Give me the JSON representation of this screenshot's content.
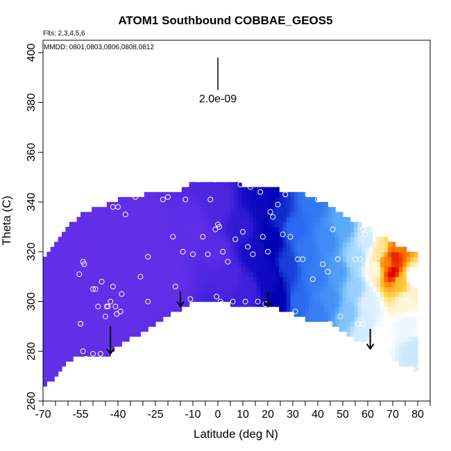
{
  "chart_data": {
    "type": "heatmap",
    "title": "ATOM1 Southbound COBBAE_GEOS5",
    "subtitle_flights": "Flts: 2,3,4,5,6",
    "subtitle_dates": "MMDD: 0801,0803,0806,0808,0812",
    "xlabel": "Latitude (deg N)",
    "ylabel": "Theta (C)",
    "xlim": [
      -70,
      85
    ],
    "ylim": [
      260,
      405
    ],
    "x_ticks": [
      -70,
      -55,
      -40,
      -25,
      -10,
      0,
      10,
      20,
      30,
      40,
      50,
      60,
      70,
      80
    ],
    "x_minor_ticks": [
      -65,
      -60,
      -50,
      -45,
      -35,
      -30,
      -20,
      -15,
      -5,
      5,
      15,
      25,
      35,
      45,
      55,
      65,
      75,
      85
    ],
    "y_ticks": [
      260,
      280,
      300,
      320,
      340,
      360,
      380,
      400
    ],
    "scale_bar_label": "2.0e-09",
    "scale_bar": {
      "lat": 0,
      "theta_top": 398,
      "theta_bottom": 385
    },
    "colormap": [
      "#8A3CF0",
      "#5A2CE6",
      "#1A0FC8",
      "#0000B4",
      "#2A6AF0",
      "#5AAAF8",
      "#A8D8FF",
      "#FFFFFF",
      "#FFD040",
      "#FF8000",
      "#E00000"
    ],
    "boundary_top": [
      [
        -70,
        317
      ],
      [
        -65,
        323
      ],
      [
        -60,
        330
      ],
      [
        -55,
        335
      ],
      [
        -50,
        337
      ],
      [
        -45,
        339
      ],
      [
        -40,
        341
      ],
      [
        -35,
        342
      ],
      [
        -30,
        343
      ],
      [
        -25,
        344
      ],
      [
        -20,
        344
      ],
      [
        -15,
        345
      ],
      [
        -10,
        348
      ],
      [
        -5,
        348
      ],
      [
        0,
        349
      ],
      [
        5,
        348
      ],
      [
        10,
        347
      ],
      [
        15,
        346
      ],
      [
        20,
        345
      ],
      [
        25,
        345
      ],
      [
        30,
        344
      ],
      [
        35,
        343
      ],
      [
        40,
        341
      ],
      [
        45,
        338
      ],
      [
        50,
        335
      ],
      [
        55,
        332
      ],
      [
        60,
        330
      ],
      [
        65,
        326
      ],
      [
        70,
        324
      ],
      [
        75,
        321
      ],
      [
        79,
        320
      ]
    ],
    "boundary_bottom": [
      [
        79,
        273
      ],
      [
        74,
        274
      ],
      [
        70,
        277
      ],
      [
        65,
        281
      ],
      [
        60,
        283
      ],
      [
        55,
        285
      ],
      [
        50,
        288
      ],
      [
        45,
        291
      ],
      [
        40,
        292
      ],
      [
        35,
        293
      ],
      [
        30,
        295
      ],
      [
        25,
        297
      ],
      [
        20,
        298
      ],
      [
        15,
        299
      ],
      [
        10,
        299
      ],
      [
        5,
        299
      ],
      [
        0,
        300
      ],
      [
        -5,
        301
      ],
      [
        -10,
        300
      ],
      [
        -13,
        298
      ],
      [
        -15,
        297
      ],
      [
        -20,
        294
      ],
      [
        -25,
        291
      ],
      [
        -30,
        288
      ],
      [
        -35,
        285
      ],
      [
        -40,
        282
      ],
      [
        -43,
        279
      ],
      [
        -45,
        278
      ],
      [
        -50,
        279
      ],
      [
        -55,
        278
      ],
      [
        -60,
        276
      ],
      [
        -63,
        273
      ],
      [
        -65,
        269
      ],
      [
        -68,
        267
      ],
      [
        -70,
        267
      ]
    ],
    "field_points": [
      [
        -65,
        290,
        0.08
      ],
      [
        -60,
        300,
        0.08
      ],
      [
        -50,
        320,
        0.08
      ],
      [
        -40,
        295,
        0.08
      ],
      [
        -30,
        330,
        0.08
      ],
      [
        -20,
        310,
        0.08
      ],
      [
        -10,
        330,
        0.09
      ],
      [
        0,
        320,
        0.1
      ],
      [
        0,
        340,
        0.12
      ],
      [
        5,
        310,
        0.12
      ],
      [
        10,
        330,
        0.16
      ],
      [
        12,
        305,
        0.14
      ],
      [
        15,
        320,
        0.22
      ],
      [
        18,
        340,
        0.25
      ],
      [
        20,
        310,
        0.24
      ],
      [
        22,
        325,
        0.3
      ],
      [
        25,
        335,
        0.34
      ],
      [
        25,
        300,
        0.3
      ],
      [
        28,
        315,
        0.36
      ],
      [
        30,
        330,
        0.4
      ],
      [
        32,
        300,
        0.4
      ],
      [
        35,
        320,
        0.42
      ],
      [
        38,
        340,
        0.42
      ],
      [
        40,
        310,
        0.43
      ],
      [
        40,
        295,
        0.43
      ],
      [
        44,
        325,
        0.45
      ],
      [
        45,
        300,
        0.46
      ],
      [
        48,
        312,
        0.48
      ],
      [
        50,
        330,
        0.5
      ],
      [
        52,
        295,
        0.55
      ],
      [
        55,
        318,
        0.6
      ],
      [
        55,
        305,
        0.58
      ],
      [
        58,
        290,
        0.65
      ],
      [
        60,
        325,
        0.65
      ],
      [
        60,
        300,
        0.66
      ],
      [
        63,
        313,
        0.72
      ],
      [
        65,
        322,
        0.75
      ],
      [
        65,
        285,
        0.7
      ],
      [
        67,
        330,
        0.8
      ],
      [
        68,
        315,
        0.9
      ],
      [
        70,
        312,
        1.0
      ],
      [
        71,
        318,
        0.97
      ],
      [
        72,
        322,
        0.9
      ],
      [
        73,
        308,
        0.82
      ],
      [
        75,
        300,
        0.72
      ],
      [
        76,
        290,
        0.68
      ],
      [
        78,
        280,
        0.64
      ],
      [
        78,
        310,
        0.7
      ]
    ],
    "sample_points": [
      [
        -55.5,
        311
      ],
      [
        -54,
        316
      ],
      [
        -53.5,
        315
      ],
      [
        -55,
        291
      ],
      [
        -55,
        291
      ],
      [
        -52.8,
        277
      ],
      [
        -50,
        305
      ],
      [
        -49,
        305
      ],
      [
        -48,
        298
      ],
      [
        -46.5,
        308
      ],
      [
        -45,
        294
      ],
      [
        -44,
        298
      ],
      [
        -43,
        300
      ],
      [
        -42,
        306
      ],
      [
        -41,
        298
      ],
      [
        -40.5,
        295
      ],
      [
        -39,
        296
      ],
      [
        -35,
        280
      ],
      [
        -44.5,
        298
      ],
      [
        -38.5,
        303
      ],
      [
        -42,
        338
      ],
      [
        -40,
        338
      ],
      [
        -37,
        335
      ],
      [
        -33,
        342
      ],
      [
        -31,
        310
      ],
      [
        -28,
        318
      ],
      [
        -28,
        300
      ],
      [
        -26,
        286
      ],
      [
        -22,
        341
      ],
      [
        -20,
        342
      ],
      [
        -18,
        326
      ],
      [
        -17,
        306
      ],
      [
        -16,
        294
      ],
      [
        -14,
        320
      ],
      [
        -13,
        341
      ],
      [
        -11,
        301
      ],
      [
        -10,
        319
      ],
      [
        -8,
        349
      ],
      [
        -6,
        326
      ],
      [
        -4,
        319
      ],
      [
        -3,
        341
      ],
      [
        -1,
        329
      ],
      [
        -1,
        349
      ],
      [
        -0.5,
        302
      ],
      [
        0,
        331
      ],
      [
        0.5,
        330
      ],
      [
        1,
        300
      ],
      [
        1.5,
        299
      ],
      [
        2,
        320
      ],
      [
        4,
        316
      ],
      [
        6,
        300
      ],
      [
        7,
        325
      ],
      [
        9,
        347
      ],
      [
        10,
        328
      ],
      [
        11,
        300
      ],
      [
        12,
        322
      ],
      [
        13,
        346
      ],
      [
        14,
        319
      ],
      [
        16,
        300
      ],
      [
        17,
        344
      ],
      [
        18,
        326
      ],
      [
        19,
        299
      ],
      [
        20,
        320
      ],
      [
        21,
        336
      ],
      [
        22,
        334
      ],
      [
        24,
        339
      ],
      [
        26,
        327
      ],
      [
        27,
        343
      ],
      [
        29,
        326
      ],
      [
        31,
        296
      ],
      [
        32,
        317
      ],
      [
        34,
        317
      ],
      [
        36,
        343
      ],
      [
        38,
        309
      ],
      [
        40,
        341
      ],
      [
        42,
        315
      ],
      [
        44,
        312
      ],
      [
        45,
        291
      ],
      [
        46,
        329
      ],
      [
        48,
        317
      ],
      [
        49,
        294
      ],
      [
        52,
        335
      ],
      [
        55,
        317
      ],
      [
        56,
        291
      ],
      [
        57,
        317
      ],
      [
        58,
        329
      ],
      [
        59,
        327
      ],
      [
        63,
        315
      ],
      [
        64,
        318
      ],
      [
        79,
        288
      ],
      [
        79.5,
        287
      ],
      [
        80,
        273
      ],
      [
        58,
        291
      ],
      [
        -47,
        279
      ],
      [
        -50,
        279
      ],
      [
        -54,
        280
      ]
    ],
    "flight_arrows": [
      {
        "lat": -43,
        "theta_top": 290,
        "theta_bottom": 279
      },
      {
        "lat": -15,
        "theta_top": 304,
        "theta_bottom": 298
      },
      {
        "lat": 20,
        "theta_top": 304,
        "theta_bottom": 298
      },
      {
        "lat": 61,
        "theta_top": 289,
        "theta_bottom": 281
      }
    ]
  }
}
